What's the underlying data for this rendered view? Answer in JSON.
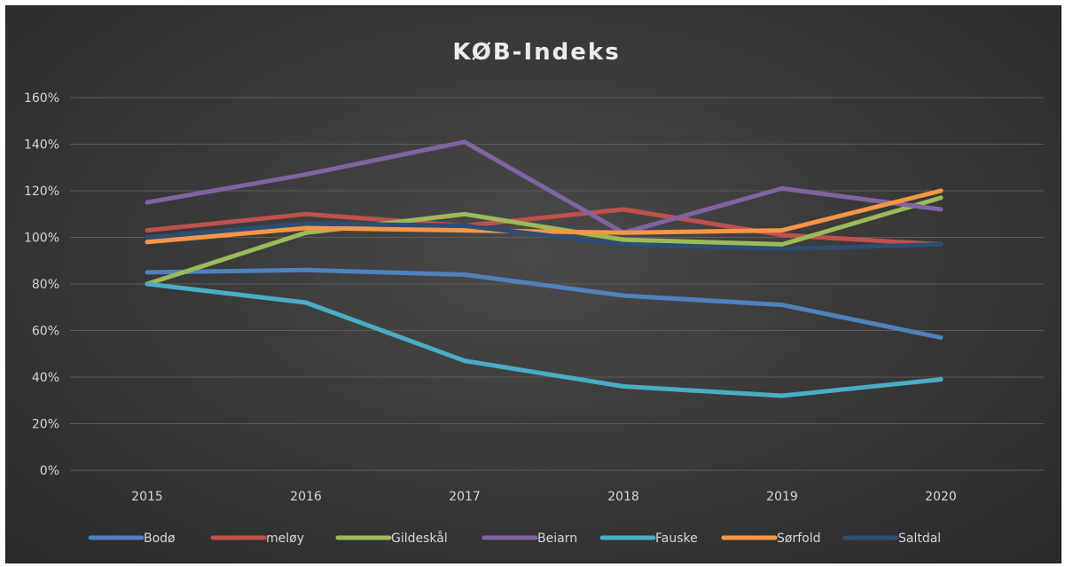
{
  "chart_data": {
    "type": "line",
    "title": "KØB-Indeks",
    "xlabel": "",
    "ylabel": "",
    "categories": [
      "2015",
      "2016",
      "2017",
      "2018",
      "2019",
      "2020"
    ],
    "y_ticks": [
      "0%",
      "20%",
      "40%",
      "60%",
      "80%",
      "100%",
      "120%",
      "140%",
      "160%"
    ],
    "ylim": [
      0,
      160
    ],
    "grid": true,
    "legend_position": "bottom",
    "series": [
      {
        "name": "Bodø",
        "color": "#4f81bd",
        "values": [
          85,
          86,
          84,
          75,
          71,
          57
        ]
      },
      {
        "name": "meløy",
        "color": "#c0504d",
        "values": [
          103,
          110,
          105,
          112,
          101,
          97
        ]
      },
      {
        "name": "Gildeskål",
        "color": "#9bbb59",
        "values": [
          80,
          102,
          110,
          99,
          97,
          117
        ]
      },
      {
        "name": "Beiarn",
        "color": "#8064a2",
        "values": [
          115,
          127,
          141,
          102,
          121,
          112
        ]
      },
      {
        "name": "Fauske",
        "color": "#4bacc6",
        "values": [
          80,
          72,
          47,
          36,
          32,
          39
        ]
      },
      {
        "name": "Sørfold",
        "color": "#f79646",
        "values": [
          98,
          104,
          103,
          102,
          103,
          120
        ]
      },
      {
        "name": "Saltdal",
        "color": "#2c4d75",
        "values": [
          100,
          106,
          105,
          97,
          95,
          97
        ]
      }
    ]
  }
}
